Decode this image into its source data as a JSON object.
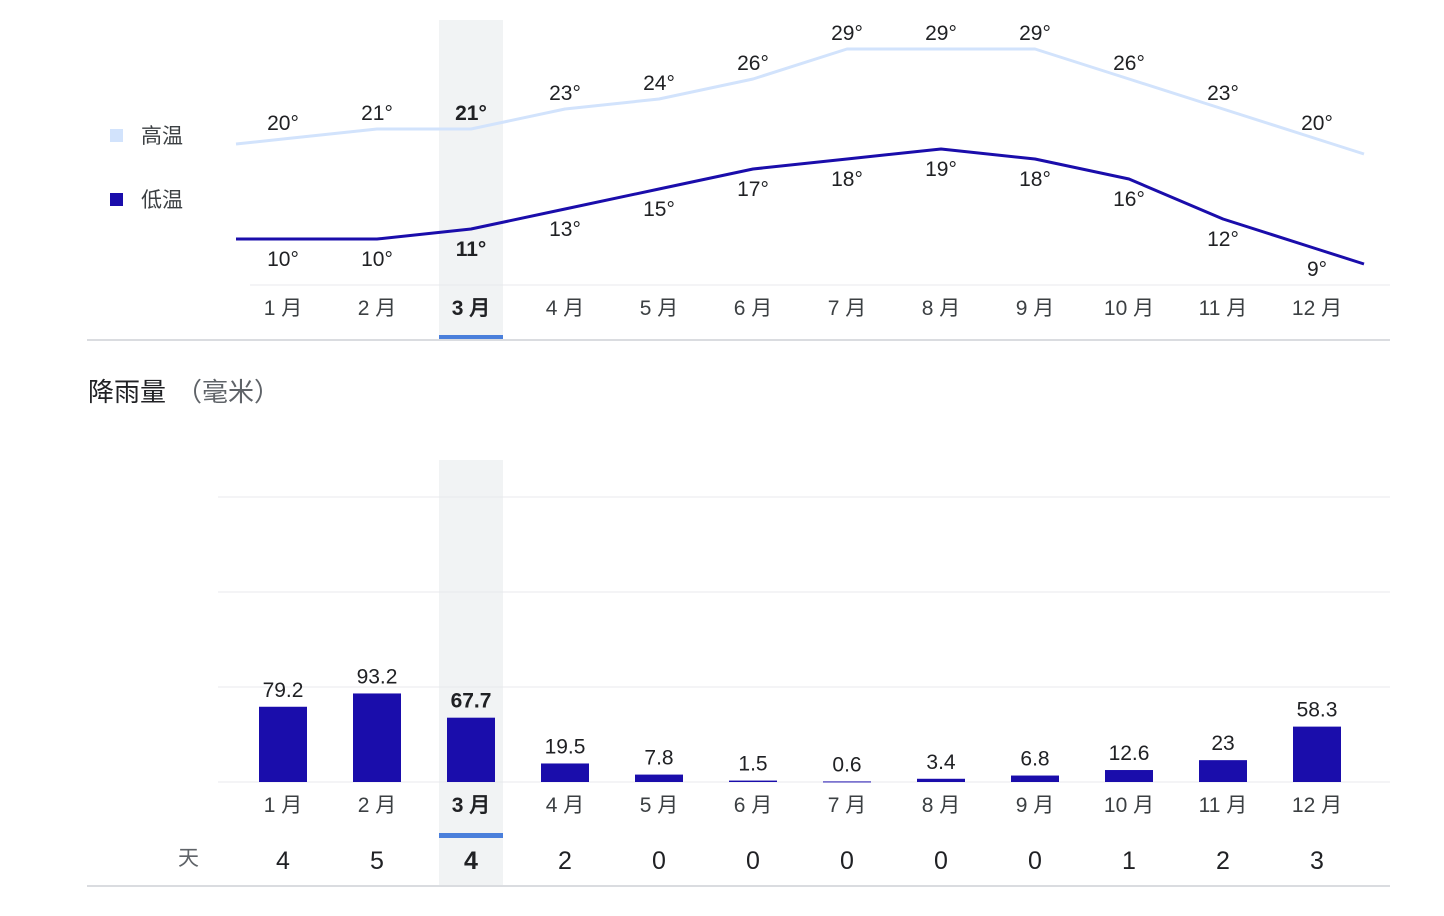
{
  "temperature": {
    "legend": {
      "high": "高温",
      "low": "低温"
    },
    "colors": {
      "high": "#d2e3fc",
      "low": "#1a0dab"
    }
  },
  "precipitation": {
    "title": "降雨量",
    "unit": "（毫米）",
    "days_label": "天",
    "bar_color": "#1a0dab"
  },
  "selected_month_index": 2,
  "colors": {
    "highlight_band": "#f1f3f4",
    "indicator": "#4a7fdb",
    "grid": "#e8eaed",
    "axis": "#dadce0"
  },
  "chart_data": [
    {
      "type": "line",
      "title": "",
      "categories": [
        "1 月",
        "2 月",
        "3 月",
        "4 月",
        "5 月",
        "6 月",
        "7 月",
        "8 月",
        "9 月",
        "10 月",
        "11 月",
        "12 月"
      ],
      "series": [
        {
          "name": "高温",
          "values": [
            20,
            21,
            21,
            23,
            24,
            26,
            29,
            29,
            29,
            26,
            23,
            20
          ],
          "value_labels": [
            "20°",
            "21°",
            "21°",
            "23°",
            "24°",
            "26°",
            "29°",
            "29°",
            "29°",
            "26°",
            "23°",
            "20°"
          ]
        },
        {
          "name": "低温",
          "values": [
            10,
            10,
            11,
            13,
            15,
            17,
            18,
            19,
            18,
            16,
            12,
            9
          ],
          "value_labels": [
            "10°",
            "10°",
            "11°",
            "13°",
            "15°",
            "17°",
            "18°",
            "19°",
            "18°",
            "16°",
            "12°",
            "9°"
          ]
        }
      ],
      "ylabel": "",
      "xlabel": "",
      "ylim": [
        8,
        30
      ],
      "grid": false,
      "legend": "left"
    },
    {
      "type": "bar",
      "title": "降雨量",
      "categories": [
        "1 月",
        "2 月",
        "3 月",
        "4 月",
        "5 月",
        "6 月",
        "7 月",
        "8 月",
        "9 月",
        "10 月",
        "11 月",
        "12 月"
      ],
      "values": [
        79.2,
        93.2,
        67.7,
        19.5,
        7.8,
        1.5,
        0.6,
        3.4,
        6.8,
        12.6,
        23,
        58.3
      ],
      "value_labels": [
        "79.2",
        "93.2",
        "67.7",
        "19.5",
        "7.8",
        "1.5",
        "0.6",
        "3.4",
        "6.8",
        "12.6",
        "23",
        "58.3"
      ],
      "rain_days": [
        4,
        5,
        4,
        2,
        0,
        0,
        0,
        0,
        0,
        1,
        2,
        3
      ],
      "ylabel": "毫米",
      "xlabel": "",
      "ylim": [
        0,
        300
      ],
      "grid": true
    }
  ]
}
